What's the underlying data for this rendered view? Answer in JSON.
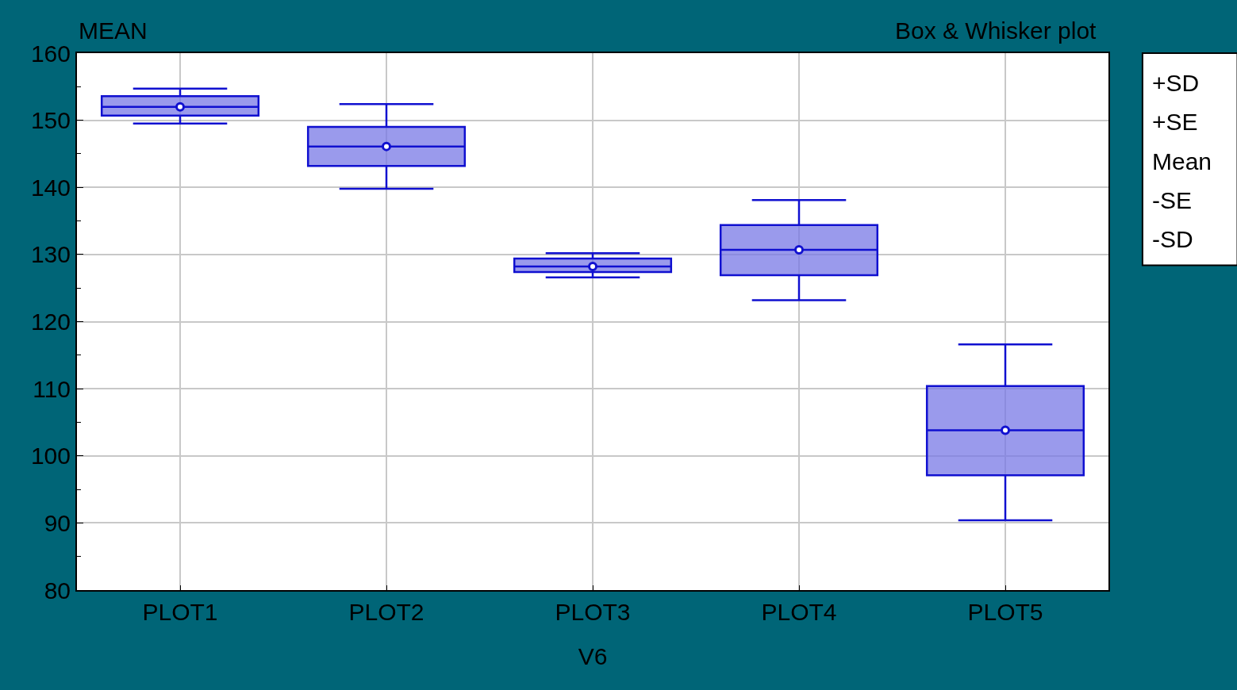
{
  "chart_data": {
    "type": "box",
    "title": "Box & Whisker plot",
    "ylabel": "MEAN",
    "xlabel": "V6",
    "categories": [
      "PLOT1",
      "PLOT2",
      "PLOT3",
      "PLOT4",
      "PLOT5"
    ],
    "boxes": [
      {
        "low": 149.5,
        "q1": 150.7,
        "median": 152.0,
        "q3": 153.6,
        "high": 154.7,
        "mean": 152.0
      },
      {
        "low": 139.8,
        "q1": 143.2,
        "median": 146.1,
        "q3": 149.0,
        "high": 152.4,
        "mean": 146.1
      },
      {
        "low": 126.6,
        "q1": 127.4,
        "median": 128.2,
        "q3": 129.4,
        "high": 130.2,
        "mean": 128.2
      },
      {
        "low": 123.2,
        "q1": 126.9,
        "median": 130.7,
        "q3": 134.4,
        "high": 138.1,
        "mean": 130.7
      },
      {
        "low": 90.4,
        "q1": 97.1,
        "median": 103.8,
        "q3": 110.4,
        "high": 116.6,
        "mean": 103.8
      }
    ],
    "color": "#1010d0",
    "ylim": [
      80,
      160
    ],
    "yticks": [
      80,
      90,
      100,
      110,
      120,
      130,
      140,
      150,
      160
    ],
    "grid": true,
    "annotations": [
      "+SD",
      "+SE",
      "Mean",
      "-SE",
      "-SD"
    ]
  }
}
